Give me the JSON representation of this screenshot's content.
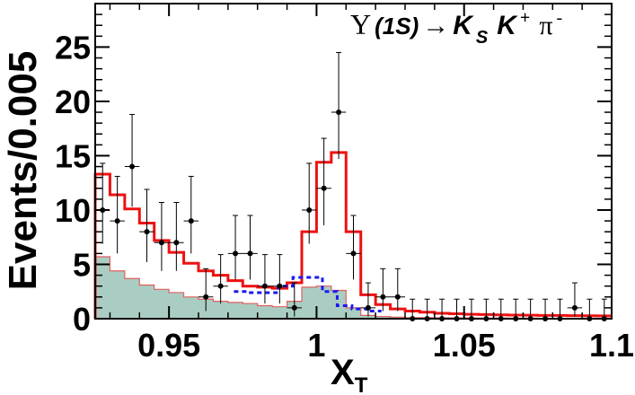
{
  "chart_data": {
    "type": "histogram",
    "title": "",
    "xlabel": "X",
    "xlabel_sub": "T",
    "ylabel": "Events/0.005",
    "annotation": {
      "upsilon": "Υ",
      "state": "(1S)",
      "arrow": "→",
      "k": "K",
      "k_sub": "S",
      "kplus": "K",
      "kplus_sup": "+",
      "pi": "π",
      "pi_sup": "-"
    },
    "xlim": [
      0.925,
      1.1
    ],
    "ylim": [
      0,
      29
    ],
    "bin_width": 0.005,
    "x_ticks": [
      0.95,
      1.0,
      1.05,
      1.1
    ],
    "x_tick_labels": [
      "0.95",
      "1",
      "1.05",
      "1.1"
    ],
    "y_ticks": [
      0,
      5,
      10,
      15,
      20,
      25
    ],
    "y_tick_labels": [
      "0",
      "5",
      "10",
      "15",
      "20",
      "25"
    ],
    "grid": false,
    "colors": {
      "total_fit": "#ee1111",
      "background_fill": "#a9cdc2",
      "background_line": "#e06060",
      "dotted_component": "#1a1aee",
      "data_points": "#000000"
    },
    "series": [
      {
        "kind": "data_points",
        "x": [
          0.9275,
          0.9325,
          0.9375,
          0.9425,
          0.9475,
          0.9525,
          0.9575,
          0.9625,
          0.9675,
          0.9725,
          0.9775,
          0.9825,
          0.9875,
          0.9925,
          0.9975,
          1.0025,
          1.0075,
          1.0125,
          1.0175,
          1.0225,
          1.0275,
          1.0325,
          1.0375,
          1.0425,
          1.0475,
          1.0525,
          1.0575,
          1.0625,
          1.0675,
          1.0725,
          1.0775,
          1.0825,
          1.0875,
          1.0925,
          1.0975
        ],
        "y": [
          10,
          9,
          14,
          8,
          7,
          7,
          9,
          2,
          3,
          6,
          6,
          3,
          3,
          1,
          10,
          12,
          19,
          6,
          1,
          2,
          2,
          0,
          0,
          0,
          0,
          0,
          0,
          0,
          0,
          0,
          0,
          0,
          1,
          0,
          0
        ],
        "yerr_up": [
          4.3,
          4.1,
          4.8,
          3.9,
          3.7,
          3.7,
          4.1,
          2.6,
          2.9,
          3.5,
          3.5,
          2.9,
          2.9,
          2.3,
          4.3,
          4.6,
          5.5,
          3.5,
          2.3,
          2.6,
          2.6,
          1.8,
          1.8,
          1.8,
          1.8,
          1.8,
          1.8,
          1.8,
          1.8,
          1.8,
          1.8,
          1.8,
          2.3,
          1.8,
          1.8
        ],
        "yerr_down": [
          3.1,
          3.0,
          3.7,
          2.8,
          2.6,
          2.6,
          3.0,
          1.3,
          1.6,
          2.4,
          2.4,
          1.6,
          1.6,
          0.8,
          3.1,
          3.4,
          4.3,
          2.4,
          0.8,
          1.3,
          1.3,
          0,
          0,
          0,
          0,
          0,
          0,
          0,
          0,
          0,
          0,
          0,
          0.8,
          0,
          0
        ]
      },
      {
        "kind": "total_fit",
        "values": [
          13.3,
          11.4,
          10.1,
          8.8,
          7.2,
          6.1,
          5.1,
          4.4,
          4.0,
          3.5,
          3.0,
          2.9,
          2.8,
          3.3,
          8.0,
          14.4,
          15.3,
          8.0,
          2.2,
          1.3,
          0.9,
          0.7,
          0.6,
          0.5,
          0.45,
          0.4,
          0.38,
          0.35,
          0.33,
          0.32,
          0.3,
          0.3,
          0.28,
          0.27,
          0.26
        ]
      },
      {
        "kind": "background",
        "values": [
          5.7,
          4.4,
          3.7,
          3.1,
          2.7,
          2.4,
          2.0,
          1.8,
          1.6,
          1.5,
          1.4,
          1.2,
          1.1,
          1.6,
          2.9,
          3.0,
          2.6,
          1.0,
          0.3,
          0.2,
          0.15,
          0.1,
          0.1,
          0.08,
          0.07,
          0.06,
          0.05,
          0.05,
          0.04,
          0.04,
          0.03,
          0.03,
          0.03,
          0.03,
          0.02
        ]
      },
      {
        "kind": "dotted_component",
        "x_range": [
          0.972,
          1.022
        ],
        "values": [
          2.5,
          2.4,
          2.4,
          3.0,
          3.8,
          3.8,
          2.5,
          1.2,
          0.9,
          0.7
        ]
      }
    ]
  }
}
